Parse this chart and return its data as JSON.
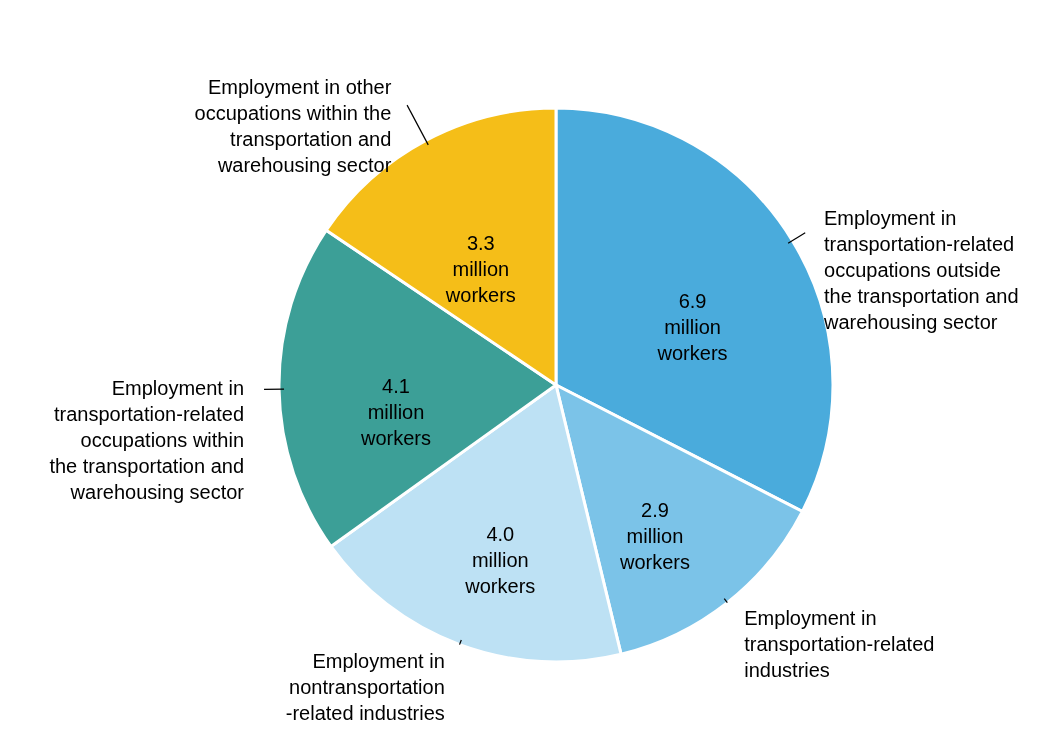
{
  "chart_data": {
    "type": "pie",
    "categories": [
      "Employment in\ntransportation-related\noccupations outside\nthe transportation and\nwarehousing sector",
      "Employment in\ntransportation-related\nindustries",
      "Employment in\nnontransportation\n-related industries",
      "Employment in\ntransportation-related\noccupations within\nthe transportation and\nwarehousing sector",
      "Employment in other\noccupations within the\ntransportation and\nwarehousing sector"
    ],
    "values": [
      6.9,
      2.9,
      4.0,
      4.1,
      3.3
    ],
    "value_labels": [
      "6.9 million workers",
      "2.9 million workers",
      "4.0 million workers",
      "4.1 million workers",
      "3.3 million workers"
    ],
    "colors": [
      "#4aabdc",
      "#7bc3e8",
      "#bde1f4",
      "#3c9f97",
      "#f5be18"
    ]
  }
}
